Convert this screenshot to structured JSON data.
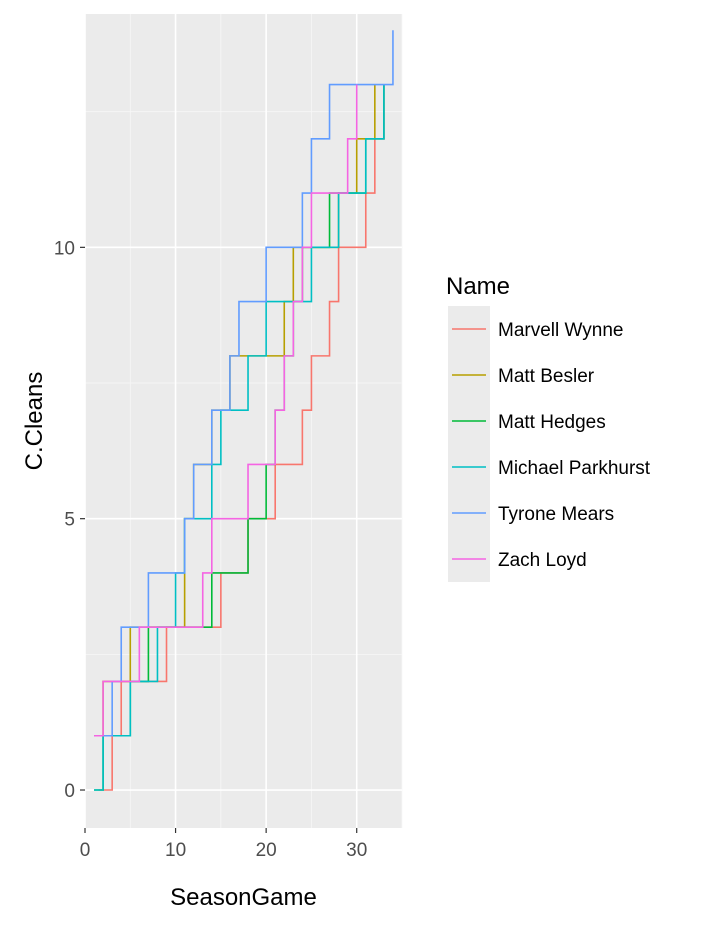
{
  "chart_data": {
    "type": "line",
    "xlabel": "SeasonGame",
    "ylabel": "C.Cleans",
    "xlim": [
      0,
      35
    ],
    "ylim": [
      -0.7,
      14.3
    ],
    "x_ticks": [
      0,
      10,
      20,
      30
    ],
    "y_ticks": [
      0,
      5,
      10
    ],
    "grid": true,
    "legend": {
      "title": "Name",
      "placement": "right"
    },
    "series": [
      {
        "name": "Marvell Wynne",
        "color": "#F8766D",
        "x": [
          1.5,
          2,
          3,
          4,
          5,
          6,
          7,
          8,
          9,
          10,
          11,
          12,
          13,
          14,
          15,
          16,
          17,
          18,
          19,
          20,
          21,
          22,
          23,
          24,
          25,
          26,
          27,
          28,
          29,
          30,
          31,
          32,
          33
        ],
        "y": [
          0,
          0,
          1,
          2,
          2,
          2,
          2,
          2,
          3,
          3,
          3,
          3,
          3,
          3,
          4,
          4,
          4,
          5,
          5,
          5,
          6,
          6,
          6,
          7,
          8,
          8,
          9,
          10,
          10,
          10,
          11,
          12,
          13
        ]
      },
      {
        "name": "Matt Besler",
        "color": "#B79F00",
        "x": [
          1,
          2,
          3,
          4,
          5,
          6,
          7,
          8,
          9,
          10,
          11,
          12,
          13,
          14,
          15,
          16,
          17,
          18,
          19,
          20,
          21,
          22,
          23,
          24,
          25,
          26,
          27,
          28,
          29,
          30,
          31,
          32
        ],
        "y": [
          1,
          2,
          2,
          2,
          3,
          3,
          3,
          3,
          3,
          3,
          5,
          6,
          6,
          7,
          7,
          8,
          8,
          8,
          8,
          8,
          8,
          9,
          10,
          10,
          10,
          10,
          10,
          11,
          11,
          12,
          12,
          13
        ]
      },
      {
        "name": "Matt Hedges",
        "color": "#00BA38",
        "x": [
          1,
          2,
          3,
          4,
          5,
          6,
          7,
          8,
          9,
          10,
          11,
          12,
          13,
          14,
          15,
          16,
          17,
          18,
          19,
          20,
          21,
          22,
          23,
          24,
          25,
          26,
          27,
          28,
          29,
          30,
          31,
          32,
          33
        ],
        "y": [
          0,
          1,
          1,
          1,
          2,
          2,
          3,
          3,
          3,
          3,
          3,
          3,
          3,
          4,
          4,
          4,
          4,
          5,
          5,
          6,
          7,
          8,
          9,
          10,
          10,
          10,
          11,
          11,
          11,
          11,
          12,
          12,
          13
        ]
      },
      {
        "name": "Michael Parkhurst",
        "color": "#00BFC4",
        "x": [
          1,
          2,
          3,
          4,
          5,
          6,
          7,
          8,
          9,
          10,
          11,
          12,
          13,
          14,
          15,
          16,
          17,
          18,
          19,
          20,
          21,
          22,
          23,
          24,
          25,
          26,
          27,
          28,
          29,
          30,
          31,
          32,
          33
        ],
        "y": [
          0,
          1,
          1,
          1,
          2,
          2,
          2,
          3,
          3,
          4,
          5,
          5,
          5,
          6,
          7,
          7,
          7,
          8,
          8,
          9,
          9,
          9,
          9,
          9,
          10,
          10,
          10,
          11,
          11,
          11,
          12,
          12,
          13
        ]
      },
      {
        "name": "Tyrone Mears",
        "color": "#619CFF",
        "x": [
          1,
          2,
          3,
          4,
          5,
          6,
          7,
          8,
          9,
          10,
          11,
          12,
          13,
          14,
          15,
          16,
          17,
          18,
          19,
          20,
          21,
          22,
          23,
          24,
          25,
          26,
          27,
          28,
          29,
          30,
          31,
          32,
          33,
          34
        ],
        "y": [
          1,
          1,
          2,
          3,
          3,
          3,
          4,
          4,
          4,
          4,
          5,
          6,
          6,
          7,
          7,
          8,
          9,
          9,
          9,
          10,
          10,
          10,
          10,
          11,
          12,
          12,
          13,
          13,
          13,
          13,
          13,
          13,
          13,
          14
        ]
      },
      {
        "name": "Zach Loyd",
        "color": "#F564E3",
        "x": [
          1,
          2,
          3,
          4,
          5,
          6,
          7,
          8,
          9,
          10,
          11,
          12,
          13,
          14,
          15,
          16,
          17,
          18,
          19,
          20,
          21,
          22,
          23,
          24,
          25,
          26,
          27,
          28,
          29,
          30
        ],
        "y": [
          1,
          2,
          2,
          2,
          2,
          3,
          3,
          3,
          3,
          3,
          3,
          3,
          4,
          5,
          5,
          5,
          5,
          6,
          6,
          6,
          7,
          8,
          9,
          10,
          11,
          11,
          11,
          11,
          12,
          13
        ]
      }
    ]
  }
}
